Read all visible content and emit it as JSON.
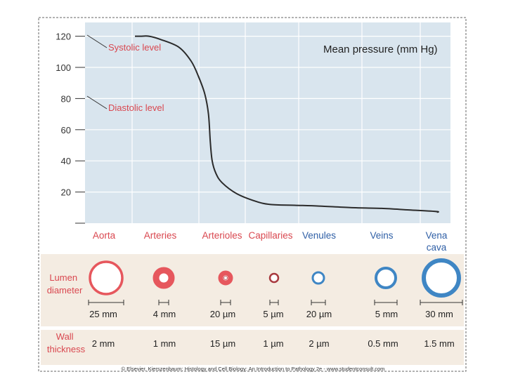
{
  "chart_data": {
    "type": "line",
    "title": "Mean pressure (mm Hg)",
    "ylim": [
      0,
      130
    ],
    "yticks": [
      "120",
      "100",
      "80",
      "60",
      "40",
      "20"
    ],
    "ytick_values": [
      120,
      100,
      80,
      60,
      40,
      20
    ],
    "annotations": [
      "Systolic level",
      "Diastolic level"
    ],
    "categories": [
      "Aorta",
      "Arteries",
      "Arterioles",
      "Capillaries",
      "Venules",
      "Veins",
      "Vena cava"
    ],
    "series": [
      {
        "name": "Mean pressure",
        "x": [
          0.55,
          0.65,
          0.8,
          1.0,
          1.3,
          1.5,
          1.62,
          1.72,
          1.78,
          1.81,
          1.84,
          1.9,
          2.0,
          2.3,
          2.7,
          3.0,
          3.5,
          4.0,
          4.5,
          5.0,
          5.5,
          6.0,
          6.4
        ],
        "values": [
          120,
          120,
          120,
          118,
          113,
          104,
          94,
          83,
          70,
          52,
          40,
          32,
          26,
          19,
          14,
          12,
          11.5,
          11,
          10,
          9.5,
          8.5,
          7.5,
          7
        ]
      }
    ]
  },
  "vessels": [
    {
      "name": "Aorta",
      "lumen": "25 mm",
      "wall": "2 mm",
      "diameter_mm": 25
    },
    {
      "name": "Arteries",
      "lumen": "4 mm",
      "wall": "1 mm",
      "diameter_mm": 4
    },
    {
      "name": "Arterioles",
      "lumen": "20 µm",
      "wall": "15 µm",
      "diameter_mm": 0.02
    },
    {
      "name": "Capillaries",
      "lumen": "5 µm",
      "wall": "1 µm",
      "diameter_mm": 0.005
    },
    {
      "name": "Venules",
      "lumen": "20 µm",
      "wall": "2 µm",
      "diameter_mm": 0.02
    },
    {
      "name": "Veins",
      "lumen": "5 mm",
      "wall": "0.5  mm",
      "diameter_mm": 5
    },
    {
      "name": "Vena cava",
      "lumen": "30 mm",
      "wall": "1.5 mm",
      "diameter_mm": 30
    }
  ],
  "labels": {
    "lumen_diameter": "Lumen diameter",
    "wall_thickness": "Wall thickness"
  },
  "copyright": "© Elsevier. Kierszenbaum: Histology and Cell Biology: An Introduction to Pathology 2e - www.studentconsult.com",
  "colors": {
    "plot_bg": "#d9e5ee",
    "grid": "#ffffff",
    "band_bg": "#f4ece2",
    "label_red": "#d9474f",
    "artery_fill": "#e6575d",
    "artery_dark": "#a83a3f",
    "vein_fill": "#3f86c4",
    "vein_label": "#2f5fa6",
    "curve": "#2b2b2b"
  }
}
